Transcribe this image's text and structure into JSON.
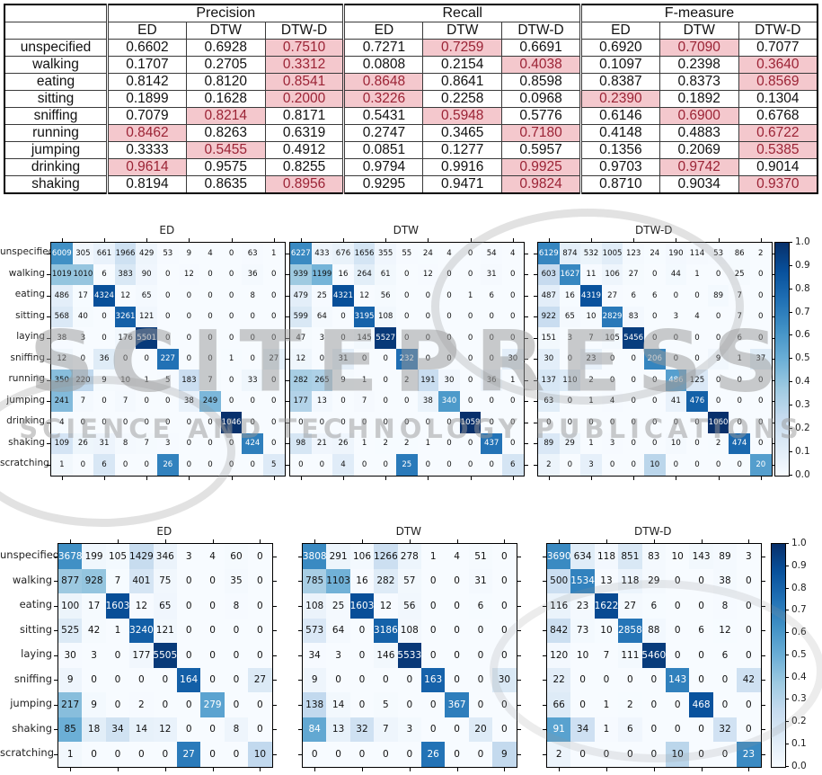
{
  "watermark": {
    "line1": "SCITEPRESS",
    "line2": "SCIENCE AND TECHNOLOGY PUBLICATIONS"
  },
  "metrics_table": {
    "groups": [
      "Precision",
      "Recall",
      "F-measure"
    ],
    "methods": [
      "ED",
      "DTW",
      "DTW-D"
    ],
    "highlight_bg": "#f4c8cd",
    "highlight_fg": "#9b2335",
    "rows": [
      {
        "label": "unspecified",
        "values": [
          "0.6602",
          "0.6928",
          "0.7510",
          "0.7271",
          "0.7259",
          "0.6691",
          "0.6920",
          "0.7090",
          "0.7077"
        ],
        "highlights": [
          0,
          0,
          1,
          0,
          1,
          0,
          0,
          1,
          0
        ]
      },
      {
        "label": "walking",
        "values": [
          "0.1707",
          "0.2705",
          "0.3312",
          "0.0808",
          "0.2154",
          "0.4038",
          "0.1097",
          "0.2398",
          "0.3640"
        ],
        "highlights": [
          0,
          0,
          1,
          0,
          0,
          1,
          0,
          0,
          1
        ]
      },
      {
        "label": "eating",
        "values": [
          "0.8142",
          "0.8120",
          "0.8541",
          "0.8648",
          "0.8641",
          "0.8598",
          "0.8387",
          "0.8373",
          "0.8569"
        ],
        "highlights": [
          0,
          0,
          1,
          1,
          0,
          0,
          0,
          0,
          1
        ]
      },
      {
        "label": "sitting",
        "values": [
          "0.1899",
          "0.1628",
          "0.2000",
          "0.3226",
          "0.2258",
          "0.0968",
          "0.2390",
          "0.1892",
          "0.1304"
        ],
        "highlights": [
          0,
          0,
          1,
          1,
          0,
          0,
          1,
          0,
          0
        ]
      },
      {
        "label": "sniffing",
        "values": [
          "0.7079",
          "0.8214",
          "0.8171",
          "0.5431",
          "0.5948",
          "0.5776",
          "0.6146",
          "0.6900",
          "0.6768"
        ],
        "highlights": [
          0,
          1,
          0,
          0,
          1,
          0,
          0,
          1,
          0
        ]
      },
      {
        "label": "running",
        "values": [
          "0.8462",
          "0.8263",
          "0.6319",
          "0.2747",
          "0.3465",
          "0.7180",
          "0.4148",
          "0.4883",
          "0.6722"
        ],
        "highlights": [
          1,
          0,
          0,
          0,
          0,
          1,
          0,
          0,
          1
        ]
      },
      {
        "label": "jumping",
        "values": [
          "0.3333",
          "0.5455",
          "0.4912",
          "0.0851",
          "0.1277",
          "0.5957",
          "0.1356",
          "0.2069",
          "0.5385"
        ],
        "highlights": [
          0,
          1,
          0,
          0,
          0,
          0,
          0,
          0,
          1
        ]
      },
      {
        "label": "drinking",
        "values": [
          "0.9614",
          "0.9575",
          "0.8255",
          "0.9794",
          "0.9916",
          "0.9925",
          "0.9703",
          "0.9742",
          "0.9014"
        ],
        "highlights": [
          1,
          0,
          0,
          0,
          0,
          1,
          0,
          1,
          0
        ]
      },
      {
        "label": "shaking",
        "values": [
          "0.8194",
          "0.8635",
          "0.8956",
          "0.9295",
          "0.9471",
          "0.9824",
          "0.8710",
          "0.9034",
          "0.9370"
        ],
        "highlights": [
          0,
          0,
          1,
          0,
          0,
          1,
          0,
          0,
          1
        ]
      }
    ]
  },
  "chart_data": [
    {
      "type": "heatmap",
      "normalization": "row_sum",
      "colormap": "Blues",
      "row_labels": [
        "unspecified",
        "walking",
        "eating",
        "sitting",
        "laying",
        "sniffing",
        "running",
        "jumping",
        "drinking",
        "shaking",
        "scratching"
      ],
      "colorbar": {
        "min": 0.0,
        "max": 1.0,
        "ticks": [
          "1.0",
          "0.9",
          "0.8",
          "0.7",
          "0.6",
          "0.5",
          "0.4",
          "0.3",
          "0.2",
          "0.1",
          "0.0"
        ]
      },
      "plots": [
        {
          "title": "ED",
          "matrix": [
            [
              6009,
              305,
              661,
              1966,
              429,
              53,
              9,
              4,
              0,
              63,
              1
            ],
            [
              1019,
              1010,
              6,
              383,
              90,
              0,
              12,
              0,
              0,
              36,
              0
            ],
            [
              486,
              17,
              4324,
              12,
              65,
              0,
              0,
              0,
              0,
              8,
              0
            ],
            [
              568,
              40,
              0,
              3261,
              121,
              0,
              0,
              0,
              0,
              0,
              0
            ],
            [
              38,
              3,
              0,
              176,
              5501,
              0,
              0,
              0,
              0,
              0,
              0
            ],
            [
              12,
              0,
              36,
              0,
              0,
              227,
              0,
              0,
              1,
              0,
              27
            ],
            [
              350,
              220,
              9,
              10,
              1,
              5,
              183,
              7,
              0,
              33,
              0
            ],
            [
              241,
              7,
              0,
              7,
              0,
              0,
              38,
              249,
              0,
              0,
              0
            ],
            [
              4,
              0,
              0,
              0,
              0,
              0,
              0,
              0,
              1046,
              0,
              0
            ],
            [
              109,
              26,
              31,
              8,
              7,
              3,
              0,
              0,
              0,
              424,
              0
            ],
            [
              1,
              0,
              6,
              0,
              0,
              26,
              0,
              0,
              0,
              0,
              5
            ]
          ]
        },
        {
          "title": "DTW",
          "matrix": [
            [
              6227,
              433,
              676,
              1656,
              355,
              55,
              24,
              4,
              0,
              54,
              4
            ],
            [
              939,
              1199,
              16,
              264,
              61,
              0,
              12,
              0,
              0,
              31,
              0
            ],
            [
              479,
              25,
              4321,
              12,
              56,
              0,
              0,
              0,
              1,
              6,
              0
            ],
            [
              599,
              64,
              0,
              3195,
              108,
              0,
              0,
              0,
              0,
              0,
              0
            ],
            [
              47,
              3,
              0,
              145,
              5527,
              0,
              0,
              0,
              0,
              0,
              0
            ],
            [
              12,
              0,
              31,
              0,
              0,
              232,
              0,
              0,
              0,
              0,
              30
            ],
            [
              282,
              265,
              9,
              1,
              0,
              2,
              191,
              30,
              0,
              36,
              1
            ],
            [
              177,
              13,
              0,
              7,
              0,
              0,
              38,
              340,
              0,
              0,
              0
            ],
            [
              0,
              0,
              0,
              0,
              0,
              0,
              0,
              0,
              1059,
              0,
              0
            ],
            [
              98,
              21,
              26,
              1,
              2,
              2,
              1,
              0,
              0,
              437,
              0
            ],
            [
              0,
              0,
              4,
              0,
              0,
              25,
              0,
              0,
              0,
              0,
              6
            ]
          ]
        },
        {
          "title": "DTW-D",
          "matrix": [
            [
              6129,
              874,
              532,
              1005,
              123,
              24,
              190,
              114,
              53,
              86,
              2
            ],
            [
              603,
              1627,
              11,
              106,
              27,
              0,
              44,
              1,
              0,
              25,
              0
            ],
            [
              487,
              16,
              4319,
              27,
              6,
              6,
              0,
              0,
              89,
              7,
              0
            ],
            [
              922,
              65,
              10,
              2829,
              83,
              0,
              3,
              4,
              0,
              7,
              0
            ],
            [
              151,
              3,
              7,
              105,
              5456,
              0,
              0,
              0,
              0,
              6,
              0
            ],
            [
              30,
              0,
              23,
              0,
              0,
              206,
              0,
              0,
              9,
              1,
              37
            ],
            [
              137,
              110,
              2,
              0,
              0,
              0,
              486,
              125,
              0,
              0,
              0
            ],
            [
              63,
              0,
              1,
              4,
              0,
              0,
              41,
              476,
              0,
              0,
              0
            ],
            [
              0,
              0,
              0,
              0,
              0,
              0,
              0,
              0,
              1060,
              0,
              0
            ],
            [
              89,
              29,
              1,
              3,
              0,
              0,
              10,
              0,
              2,
              474,
              0
            ],
            [
              2,
              0,
              3,
              0,
              0,
              10,
              0,
              0,
              0,
              0,
              20
            ]
          ]
        }
      ]
    },
    {
      "type": "heatmap",
      "normalization": "row_sum",
      "colormap": "Blues",
      "row_labels": [
        "unspecified",
        "walking",
        "eating",
        "sitting",
        "laying",
        "sniffing",
        "jumping",
        "shaking",
        "scratching"
      ],
      "colorbar": {
        "min": 0.0,
        "max": 1.0,
        "ticks": [
          "1.0",
          "0.9",
          "0.8",
          "0.7",
          "0.6",
          "0.5",
          "0.4",
          "0.3",
          "0.2",
          "0.1",
          "0.0"
        ]
      },
      "plots": [
        {
          "title": "ED",
          "matrix": [
            [
              3678,
              199,
              105,
              1429,
              346,
              3,
              4,
              60,
              0
            ],
            [
              877,
              928,
              7,
              401,
              75,
              0,
              0,
              35,
              0
            ],
            [
              100,
              17,
              1603,
              12,
              65,
              0,
              0,
              8,
              0
            ],
            [
              525,
              42,
              1,
              3240,
              121,
              0,
              0,
              0,
              0
            ],
            [
              30,
              3,
              0,
              177,
              5505,
              0,
              0,
              0,
              0
            ],
            [
              9,
              0,
              0,
              0,
              0,
              164,
              0,
              0,
              27
            ],
            [
              217,
              9,
              0,
              2,
              0,
              0,
              279,
              0,
              0
            ],
            [
              85,
              18,
              34,
              14,
              12,
              0,
              0,
              8,
              0
            ],
            [
              1,
              0,
              0,
              0,
              0,
              27,
              0,
              0,
              10
            ]
          ]
        },
        {
          "title": "DTW",
          "matrix": [
            [
              3808,
              291,
              106,
              1266,
              278,
              1,
              4,
              51,
              0
            ],
            [
              785,
              1103,
              16,
              282,
              57,
              0,
              0,
              31,
              0
            ],
            [
              108,
              25,
              1603,
              12,
              56,
              0,
              0,
              6,
              0
            ],
            [
              573,
              64,
              0,
              3186,
              108,
              0,
              0,
              0,
              0
            ],
            [
              34,
              3,
              0,
              146,
              5533,
              0,
              0,
              0,
              0
            ],
            [
              9,
              0,
              0,
              0,
              0,
              163,
              0,
              0,
              30
            ],
            [
              138,
              14,
              0,
              5,
              0,
              0,
              367,
              0,
              0
            ],
            [
              84,
              13,
              32,
              7,
              3,
              0,
              0,
              20,
              0
            ],
            [
              0,
              0,
              0,
              0,
              0,
              26,
              0,
              0,
              9
            ]
          ]
        },
        {
          "title": "DTW-D",
          "matrix": [
            [
              3690,
              634,
              118,
              851,
              83,
              10,
              143,
              89,
              3
            ],
            [
              500,
              1534,
              13,
              118,
              29,
              0,
              0,
              38,
              0
            ],
            [
              116,
              23,
              1622,
              27,
              6,
              0,
              0,
              8,
              0
            ],
            [
              842,
              73,
              10,
              2858,
              88,
              0,
              6,
              12,
              0
            ],
            [
              120,
              10,
              7,
              111,
              5460,
              0,
              0,
              6,
              0
            ],
            [
              22,
              0,
              0,
              0,
              0,
              143,
              0,
              0,
              42
            ],
            [
              66,
              0,
              1,
              2,
              0,
              0,
              468,
              0,
              0
            ],
            [
              91,
              34,
              1,
              6,
              0,
              0,
              0,
              32,
              0
            ],
            [
              2,
              0,
              0,
              0,
              0,
              10,
              0,
              0,
              23
            ]
          ]
        }
      ]
    }
  ]
}
